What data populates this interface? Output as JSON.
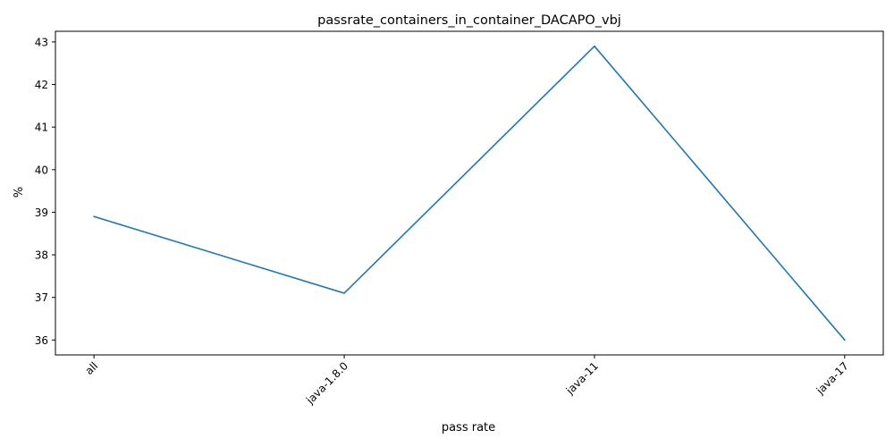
{
  "chart_data": {
    "type": "line",
    "title": "passrate_containers_in_container_DACAPO_vbj",
    "xlabel": "pass rate",
    "ylabel": "%",
    "categories": [
      "all",
      "java-1.8.0",
      "java-11",
      "java-17"
    ],
    "series": [
      {
        "values": [
          38.9,
          37.1,
          42.9,
          36.0
        ],
        "color": "#1f77b4"
      }
    ],
    "ylim": [
      35.65,
      43.25
    ],
    "yticks": [
      36,
      37,
      38,
      39,
      40,
      41,
      42,
      43
    ],
    "grid": false,
    "x_tick_rotation": 45
  }
}
